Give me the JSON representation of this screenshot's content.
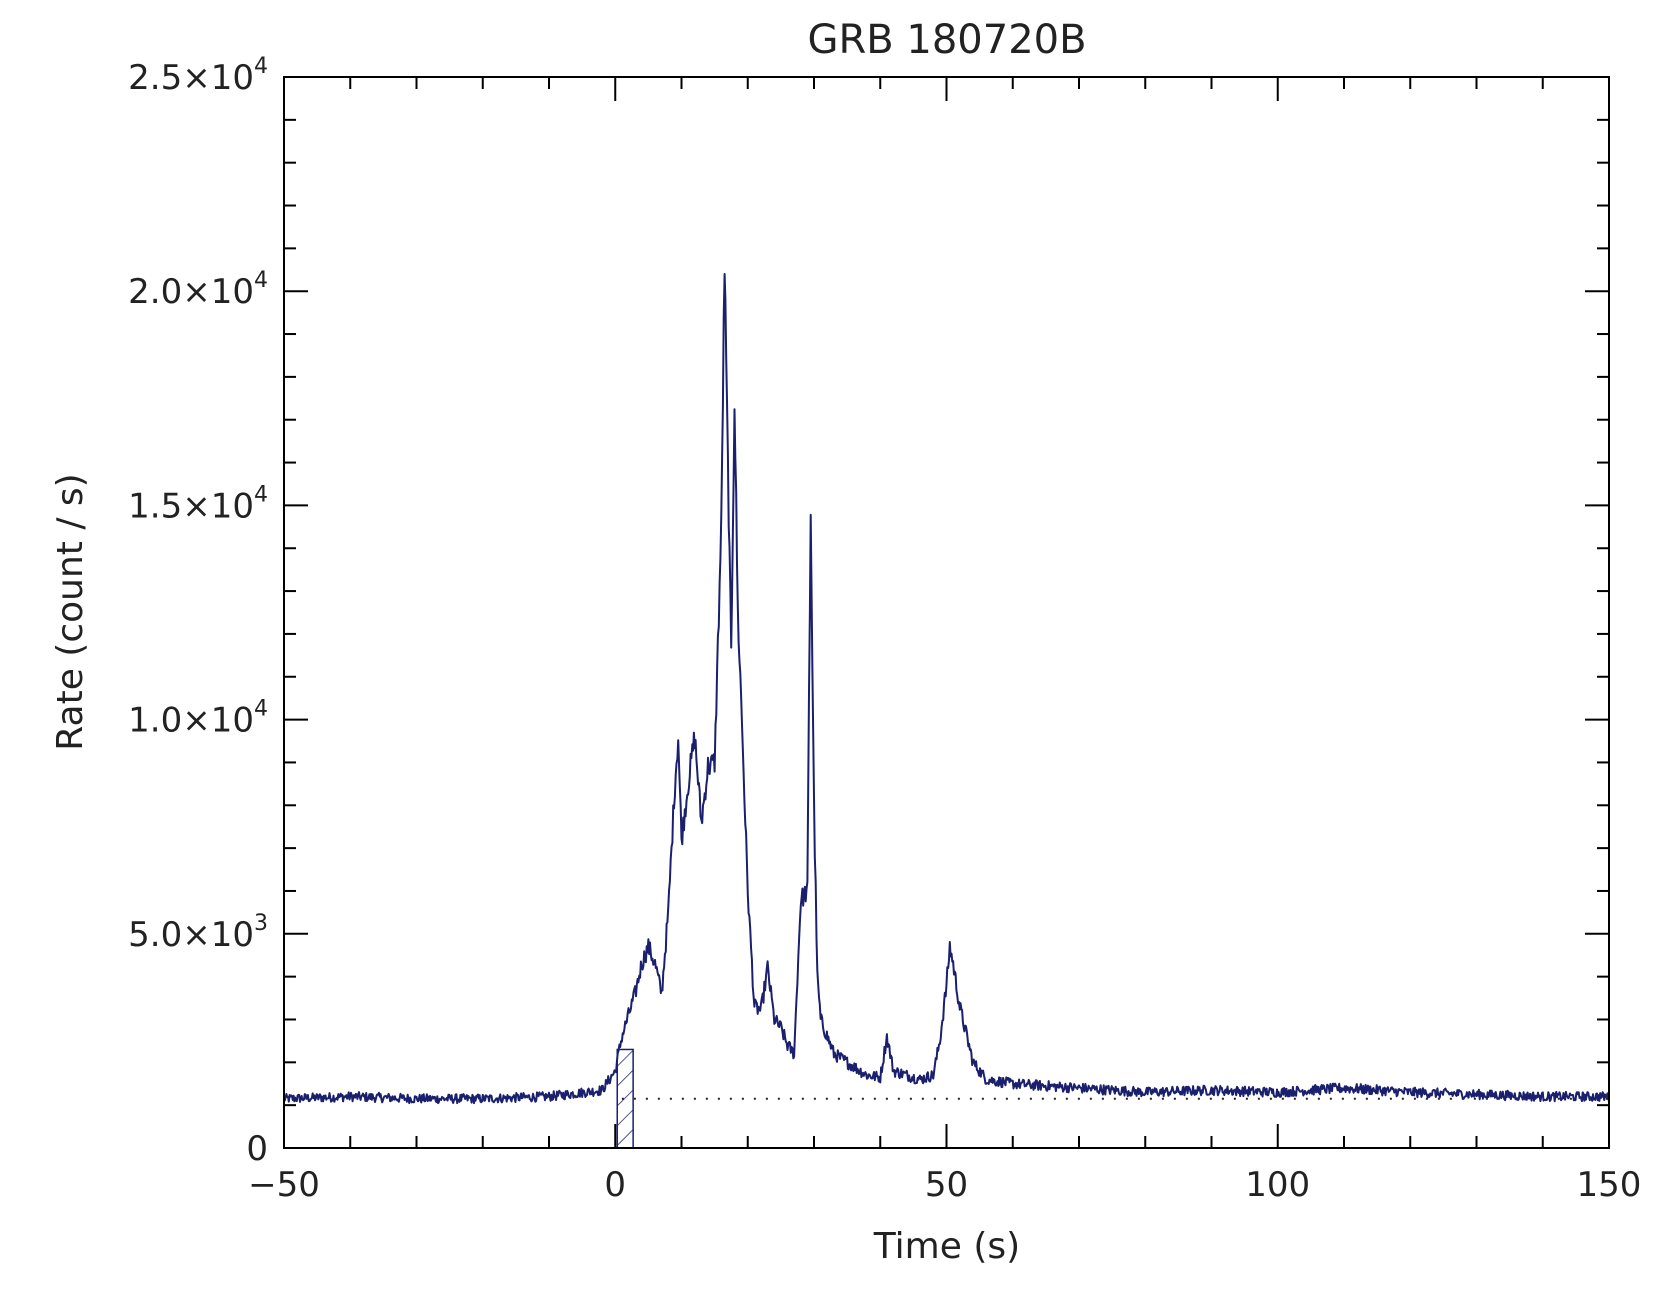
{
  "chart_data": {
    "type": "line",
    "title": "GRB 180720B",
    "xlabel": "Time (s)",
    "ylabel": "Rate (count / s)",
    "xlim": [
      -50,
      150
    ],
    "ylim": [
      0,
      25000
    ],
    "grid": false,
    "x_ticks": [
      {
        "value": -50,
        "label": "−50"
      },
      {
        "value": 0,
        "label": "0"
      },
      {
        "value": 50,
        "label": "50"
      },
      {
        "value": 100,
        "label": "100"
      },
      {
        "value": 150,
        "label": "150"
      }
    ],
    "y_ticks": [
      {
        "value": 0,
        "label": "0",
        "exp": ""
      },
      {
        "value": 5000,
        "label": "5.0×10",
        "exp": "3"
      },
      {
        "value": 10000,
        "label": "1.0×10",
        "exp": "4"
      },
      {
        "value": 15000,
        "label": "1.5×10",
        "exp": "4"
      },
      {
        "value": 20000,
        "label": "2.0×10",
        "exp": "4"
      },
      {
        "value": 25000,
        "label": "2.5×10",
        "exp": "4"
      }
    ],
    "series": [
      {
        "color": "#1a1f6e",
        "background_level": 1150,
        "x": [
          -50,
          -40,
          -30,
          -20,
          -10,
          -2,
          0,
          1,
          2,
          3,
          4,
          5,
          6,
          7,
          8,
          9,
          9.5,
          10,
          11,
          12,
          13,
          14,
          15,
          16,
          16.5,
          17,
          17.5,
          18,
          18.5,
          19,
          20,
          21,
          22,
          23,
          24,
          25,
          26,
          27,
          28,
          29,
          29.5,
          30,
          30.5,
          31,
          33,
          35,
          38,
          40,
          41,
          42,
          44,
          46,
          48,
          49,
          50,
          50.5,
          51,
          52,
          54,
          56,
          60,
          70,
          80,
          90,
          100,
          110,
          120,
          130,
          140,
          150
        ],
        "y": [
          1150,
          1200,
          1150,
          1150,
          1200,
          1350,
          1800,
          2600,
          3100,
          3600,
          4300,
          4700,
          4300,
          3600,
          5500,
          8500,
          9600,
          7200,
          8500,
          9600,
          7600,
          8900,
          9000,
          14500,
          20600,
          16000,
          11500,
          17500,
          12500,
          10500,
          6000,
          3300,
          3200,
          4200,
          3000,
          2800,
          2400,
          2200,
          5800,
          6000,
          14900,
          8000,
          4000,
          3000,
          2200,
          2000,
          1700,
          1650,
          2600,
          1800,
          1700,
          1600,
          1700,
          2500,
          3800,
          4700,
          4300,
          3300,
          2000,
          1600,
          1500,
          1400,
          1300,
          1350,
          1300,
          1400,
          1300,
          1250,
          1200,
          1200
        ]
      }
    ],
    "annotations": [
      {
        "type": "hatched-interval",
        "x_range": [
          0.3,
          2.7
        ]
      },
      {
        "type": "dotted-background",
        "x_range": [
          1,
          150
        ],
        "y": 1150
      }
    ]
  }
}
